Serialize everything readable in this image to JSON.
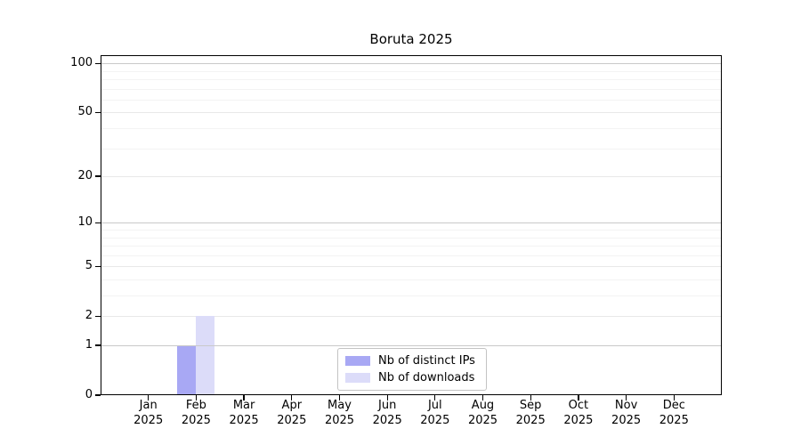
{
  "chart_data": {
    "type": "bar",
    "title": "Boruta 2025",
    "x": [
      {
        "month": "Jan",
        "year": "2025"
      },
      {
        "month": "Feb",
        "year": "2025"
      },
      {
        "month": "Mar",
        "year": "2025"
      },
      {
        "month": "Apr",
        "year": "2025"
      },
      {
        "month": "May",
        "year": "2025"
      },
      {
        "month": "Jun",
        "year": "2025"
      },
      {
        "month": "Jul",
        "year": "2025"
      },
      {
        "month": "Aug",
        "year": "2025"
      },
      {
        "month": "Sep",
        "year": "2025"
      },
      {
        "month": "Oct",
        "year": "2025"
      },
      {
        "month": "Nov",
        "year": "2025"
      },
      {
        "month": "Dec",
        "year": "2025"
      }
    ],
    "series": [
      {
        "name": "Nb of distinct IPs",
        "color": "#a8a8f4",
        "values": [
          0,
          1,
          0,
          0,
          0,
          0,
          0,
          0,
          0,
          0,
          0,
          0
        ]
      },
      {
        "name": "Nb of downloads",
        "color": "#dcdcf9",
        "values": [
          0,
          2,
          0,
          0,
          0,
          0,
          0,
          0,
          0,
          0,
          0,
          0
        ]
      }
    ],
    "y_axis": {
      "scale": "log1p",
      "ticks": [
        0,
        1,
        2,
        5,
        10,
        20,
        50,
        100
      ],
      "minor_ticks": [
        3,
        4,
        6,
        7,
        8,
        9,
        30,
        40,
        60,
        70,
        80,
        90
      ],
      "decade_lines": [
        1,
        10,
        100
      ],
      "max": 112
    },
    "legend_position": "bottom-center",
    "grid": "horizontal",
    "colors": {
      "grid_decade": "#c9c9c9",
      "grid_major": "#e8e8e8",
      "grid_minor": "#f3f3f3",
      "axis": "#000000",
      "background": "#ffffff"
    }
  }
}
